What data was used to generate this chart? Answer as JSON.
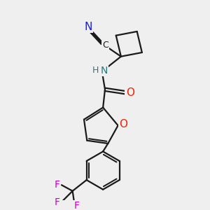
{
  "bg_color": "#efefef",
  "bond_color": "#1a1a1a",
  "bond_width": 1.6,
  "atom_colors": {
    "N_cyano": "#1a1aee",
    "N_amide": "#2a7a7a",
    "O": "#ee2200",
    "F": "#cc00cc",
    "C": "#1a1a1a"
  },
  "figsize": [
    3.0,
    3.0
  ],
  "dpi": 100,
  "xlim": [
    0,
    10
  ],
  "ylim": [
    0,
    10
  ],
  "font_size_atom": 10,
  "font_size_N": 11
}
